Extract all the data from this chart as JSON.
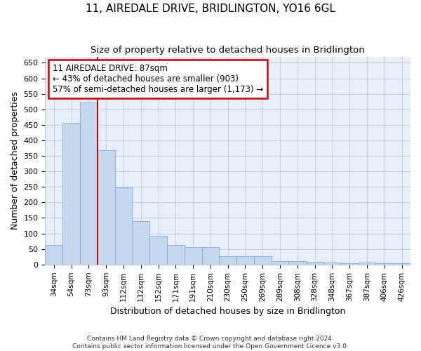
{
  "title": "11, AIREDALE DRIVE, BRIDLINGTON, YO16 6GL",
  "subtitle": "Size of property relative to detached houses in Bridlington",
  "xlabel": "Distribution of detached houses by size in Bridlington",
  "ylabel": "Number of detached properties",
  "bar_color": "#c5d8f0",
  "bar_edge_color": "#7aadd4",
  "background_color": "#e8eef8",
  "grid_color": "#b8c8e0",
  "annotation_box_color": "#cc0000",
  "annotation_line_color": "#cc0000",
  "annotation_text_line1": "11 AIREDALE DRIVE: 87sqm",
  "annotation_text_line2": "← 43% of detached houses are smaller (903)",
  "annotation_text_line3": "57% of semi-detached houses are larger (1,173) →",
  "footer_text": "Contains HM Land Registry data © Crown copyright and database right 2024.\nContains public sector information licensed under the Open Government Licence v3.0.",
  "categories": [
    "34sqm",
    "54sqm",
    "73sqm",
    "93sqm",
    "112sqm",
    "132sqm",
    "152sqm",
    "171sqm",
    "191sqm",
    "210sqm",
    "230sqm",
    "250sqm",
    "269sqm",
    "289sqm",
    "308sqm",
    "328sqm",
    "348sqm",
    "367sqm",
    "387sqm",
    "406sqm",
    "426sqm"
  ],
  "values": [
    63,
    456,
    521,
    368,
    248,
    140,
    92,
    62,
    56,
    55,
    27,
    26,
    27,
    12,
    12,
    8,
    7,
    5,
    7,
    5,
    5
  ],
  "ylim": [
    0,
    670
  ],
  "yticks": [
    0,
    50,
    100,
    150,
    200,
    250,
    300,
    350,
    400,
    450,
    500,
    550,
    600,
    650
  ],
  "red_bar_index": 2,
  "figsize": [
    6.0,
    5.0
  ],
  "dpi": 100
}
